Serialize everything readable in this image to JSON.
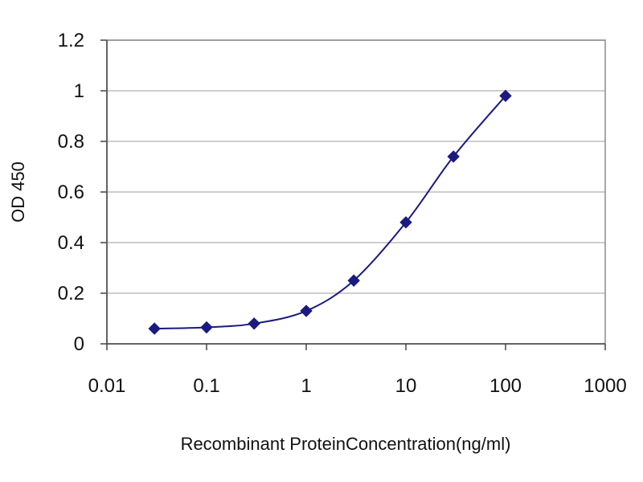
{
  "chart_data": {
    "type": "scatter",
    "title": "",
    "xlabel": "Recombinant ProteinConcentration(ng/ml)",
    "ylabel": "OD 450",
    "xscale": "log",
    "xlim": [
      0.01,
      1000
    ],
    "ylim": [
      0,
      1.2
    ],
    "x_ticks": [
      "0.01",
      "0.1",
      "1",
      "10",
      "100",
      "1000"
    ],
    "y_ticks": [
      "0",
      "0.2",
      "0.4",
      "0.6",
      "0.8",
      "1",
      "1.2"
    ],
    "grid": "horizontal",
    "legend": "none",
    "series": [
      {
        "color": "#1a1a80",
        "marker": "diamond",
        "line": "smooth",
        "points": [
          {
            "x": 0.03,
            "y": 0.06
          },
          {
            "x": 0.1,
            "y": 0.065
          },
          {
            "x": 0.3,
            "y": 0.08
          },
          {
            "x": 1,
            "y": 0.13
          },
          {
            "x": 3,
            "y": 0.25
          },
          {
            "x": 10,
            "y": 0.48
          },
          {
            "x": 30,
            "y": 0.74
          },
          {
            "x": 100,
            "y": 0.98
          }
        ]
      }
    ]
  }
}
